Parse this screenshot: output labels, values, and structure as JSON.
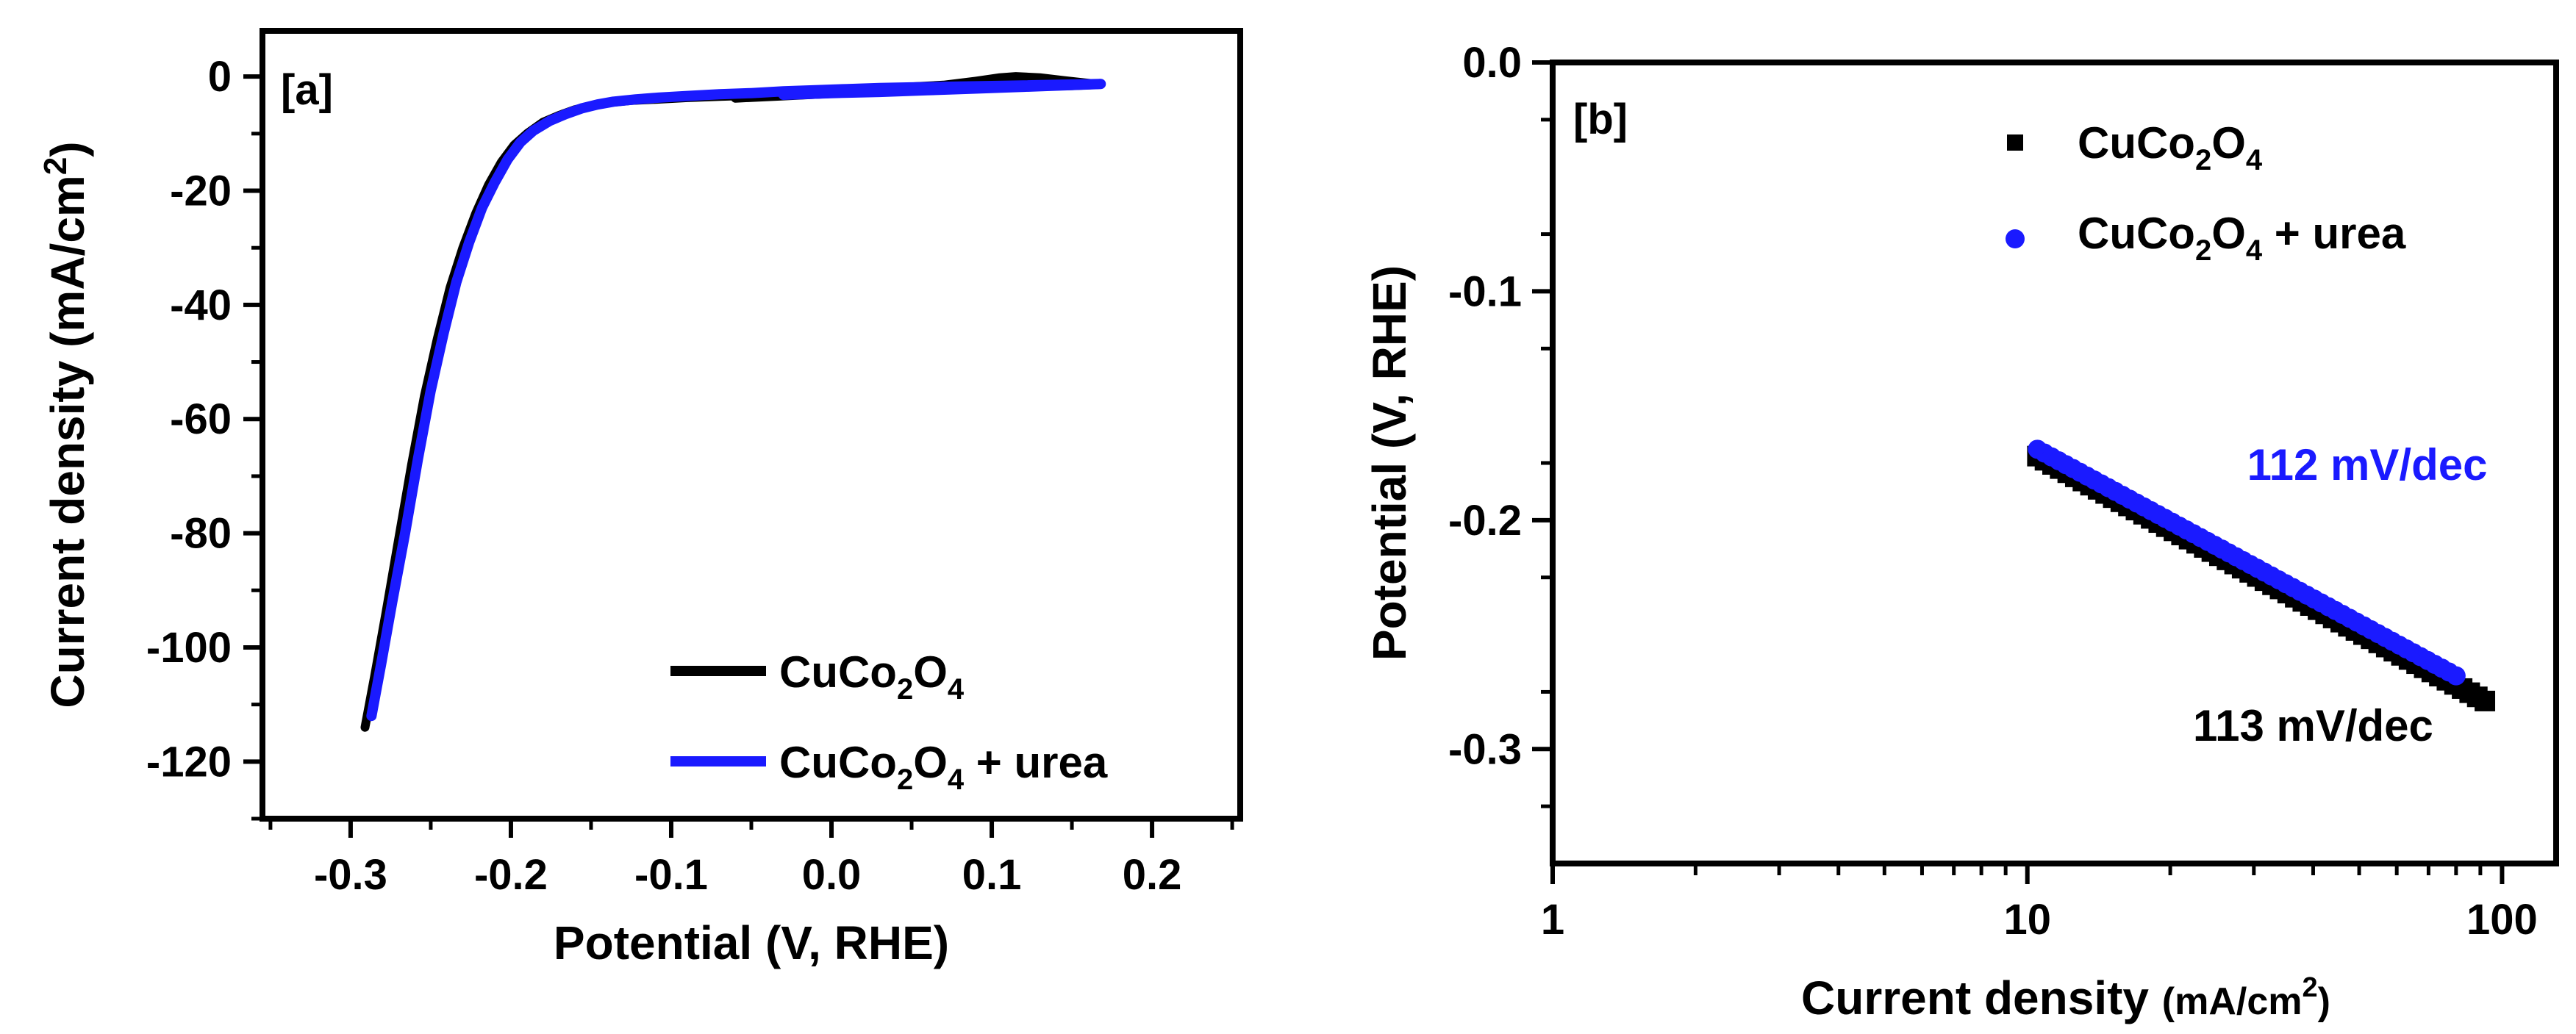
{
  "colors": {
    "black_series": "#000000",
    "blue_series": "#1a1aff",
    "axis": "#000000"
  },
  "chart_data": [
    {
      "type": "line",
      "panel_label": "[a]",
      "title": "",
      "xlabel": "Potential (V, RHE)",
      "ylabel_main": "Current density (mA/cm",
      "ylabel_sup": "2",
      "ylabel_close": ")",
      "xlim": [
        -0.355,
        0.255
      ],
      "ylim": [
        -130,
        8
      ],
      "x_ticks": [
        -0.3,
        -0.2,
        -0.1,
        0.0,
        0.1,
        0.2
      ],
      "x_tick_labels": [
        "-0.3",
        "-0.2",
        "-0.1",
        "0.0",
        "0.1",
        "0.2"
      ],
      "y_ticks": [
        0,
        -20,
        -40,
        -60,
        -80,
        -100,
        -120
      ],
      "y_tick_labels": [
        "0",
        "-20",
        "-40",
        "-60",
        "-80",
        "-100",
        "-120"
      ],
      "legend_position": "bottom-right",
      "series": [
        {
          "name": "CuCo2O4",
          "legend": {
            "base1": "CuCo",
            "sub1": "2",
            "base2": "O",
            "sub2": "4",
            "tail": ""
          },
          "color": "#000000",
          "x": [
            -0.291,
            -0.285,
            -0.278,
            -0.27,
            -0.262,
            -0.254,
            -0.246,
            -0.238,
            -0.23,
            -0.222,
            -0.214,
            -0.206,
            -0.198,
            -0.19,
            -0.18,
            -0.17,
            -0.16,
            -0.15,
            -0.14,
            -0.125,
            -0.11,
            -0.09,
            -0.07,
            -0.05,
            -0.03,
            -0.01,
            0.01,
            0.03,
            0.05,
            0.07,
            0.09,
            0.105,
            0.115,
            0.13,
            0.145,
            0.158,
            0.168,
            0.15,
            0.12,
            0.09,
            0.06,
            0.03,
            0.0,
            -0.03,
            -0.06
          ],
          "y": [
            -114,
            -105,
            -94,
            -81,
            -68,
            -56,
            -46,
            -37,
            -30,
            -24,
            -19,
            -15,
            -12,
            -10,
            -8,
            -6.8,
            -5.8,
            -5.1,
            -4.6,
            -4.2,
            -4.0,
            -3.7,
            -3.5,
            -3.3,
            -3.1,
            -2.9,
            -2.5,
            -2.1,
            -1.8,
            -1.5,
            -0.8,
            -0.2,
            0.0,
            -0.2,
            -0.7,
            -1.1,
            -1.4,
            -1.6,
            -1.8,
            -2.1,
            -2.4,
            -2.7,
            -3.0,
            -3.4,
            -3.8
          ]
        },
        {
          "name": "CuCo2O4 + urea",
          "legend": {
            "base1": "CuCo",
            "sub1": "2",
            "base2": "O",
            "sub2": "4",
            "tail": " + urea"
          },
          "color": "#1a1aff",
          "x": [
            -0.287,
            -0.281,
            -0.274,
            -0.266,
            -0.258,
            -0.25,
            -0.242,
            -0.234,
            -0.226,
            -0.218,
            -0.21,
            -0.202,
            -0.194,
            -0.186,
            -0.176,
            -0.166,
            -0.156,
            -0.146,
            -0.136,
            -0.122,
            -0.108,
            -0.09,
            -0.07,
            -0.05,
            -0.03,
            -0.01,
            0.01,
            0.03,
            0.05,
            0.07,
            0.09,
            0.11,
            0.13,
            0.15,
            0.168,
            0.15,
            0.12,
            0.09,
            0.06,
            0.03,
            0.0,
            -0.03
          ],
          "y": [
            -112,
            -103,
            -92,
            -80,
            -67,
            -55,
            -45,
            -36,
            -29,
            -23,
            -18.5,
            -14.5,
            -11.5,
            -9.5,
            -7.8,
            -6.6,
            -5.6,
            -4.9,
            -4.4,
            -4.0,
            -3.7,
            -3.4,
            -3.1,
            -2.9,
            -2.6,
            -2.4,
            -2.2,
            -2.0,
            -1.9,
            -1.8,
            -1.7,
            -1.6,
            -1.5,
            -1.4,
            -1.3,
            -1.5,
            -1.8,
            -2.1,
            -2.4,
            -2.7,
            -2.9,
            -3.2
          ]
        }
      ]
    },
    {
      "type": "scatter",
      "panel_label": "[b]",
      "title": "",
      "xlabel_main": "Current density ",
      "xlabel_small": "(mA/cm",
      "xlabel_sup": "2",
      "xlabel_close": ")",
      "ylabel": "Potential (V, RHE)",
      "x_scale": "log",
      "xlim": [
        1,
        130
      ],
      "ylim": [
        -0.35,
        0.0
      ],
      "x_ticks": [
        1,
        10,
        100
      ],
      "x_tick_labels": [
        "1",
        "10",
        "100"
      ],
      "y_ticks": [
        0.0,
        -0.1,
        -0.2,
        -0.3
      ],
      "y_tick_labels": [
        "0.0",
        "-0.1",
        "-0.2",
        "-0.3"
      ],
      "legend_position": "top-right",
      "annotations": [
        {
          "text": "112 mV/dec",
          "color": "#1a1aff",
          "x": 52,
          "y": -0.176
        },
        {
          "text": "113 mV/dec",
          "color": "#000000",
          "x": 40,
          "y": -0.29
        }
      ],
      "series": [
        {
          "name": "CuCo2O4",
          "legend": {
            "base1": "CuCo",
            "sub1": "2",
            "base2": "O",
            "sub2": "4",
            "tail": ""
          },
          "marker": "square",
          "color": "#000000",
          "x_range": [
            10.5,
            92
          ],
          "y_range": [
            -0.172,
            -0.279
          ],
          "points": 60
        },
        {
          "name": "CuCo2O4 + urea",
          "legend": {
            "base1": "CuCo",
            "sub1": "2",
            "base2": "O",
            "sub2": "4",
            "tail": " + urea"
          },
          "marker": "circle",
          "color": "#1a1aff",
          "x_range": [
            10.5,
            80
          ],
          "y_range": [
            -0.169,
            -0.268
          ],
          "points": 60
        }
      ]
    }
  ]
}
